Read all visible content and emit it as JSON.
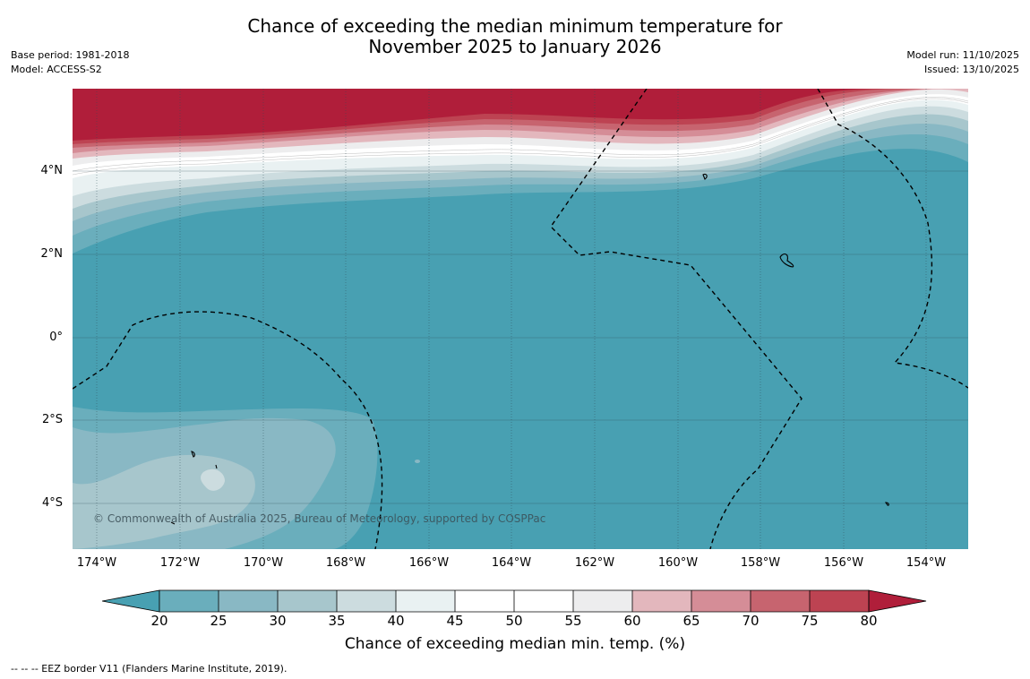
{
  "title": {
    "line1": "Chance of exceeding the median minimum temperature for",
    "line2": "November 2025 to January 2026"
  },
  "meta_left": {
    "base_period": "Base period: 1981-2018",
    "model": "Model: ACCESS-S2"
  },
  "meta_right": {
    "model_run": "Model run: 11/10/2025",
    "issued": "Issued: 13/10/2025"
  },
  "map": {
    "lat_labels": [
      "4°N",
      "2°N",
      "0°",
      "2°S",
      "4°S"
    ],
    "lon_labels": [
      "174°W",
      "172°W",
      "170°W",
      "168°W",
      "166°W",
      "164°W",
      "162°W",
      "160°W",
      "158°W",
      "156°W",
      "154°W"
    ],
    "copyright": "© Commonwealth of Australia 2025, Bureau of Meteorology, supported by COSPPac"
  },
  "colorbar": {
    "ticks": [
      "20",
      "25",
      "30",
      "35",
      "40",
      "45",
      "50",
      "55",
      "60",
      "65",
      "70",
      "75",
      "80"
    ],
    "label": "Chance of exceeding median min. temp. (%)",
    "colors": {
      "below_20": "#48a0b2",
      "b20_25": "#6aaebc",
      "b25_30": "#89b8c4",
      "b30_35": "#a7c6cc",
      "b35_40": "#ccdcdf",
      "b40_45": "#e9f1f2",
      "b45_50": "#ffffff",
      "b50_55": "#ffffff",
      "b55_60": "#ededee",
      "b60_65": "#e3b7bd",
      "b65_70": "#d58d97",
      "b70_75": "#c7646f",
      "b75_80": "#bd4352",
      "above_80": "#b01e3a"
    }
  },
  "footnote": "--  --  -- EEZ border V11 (Flanders Marine Institute, 2019)."
}
